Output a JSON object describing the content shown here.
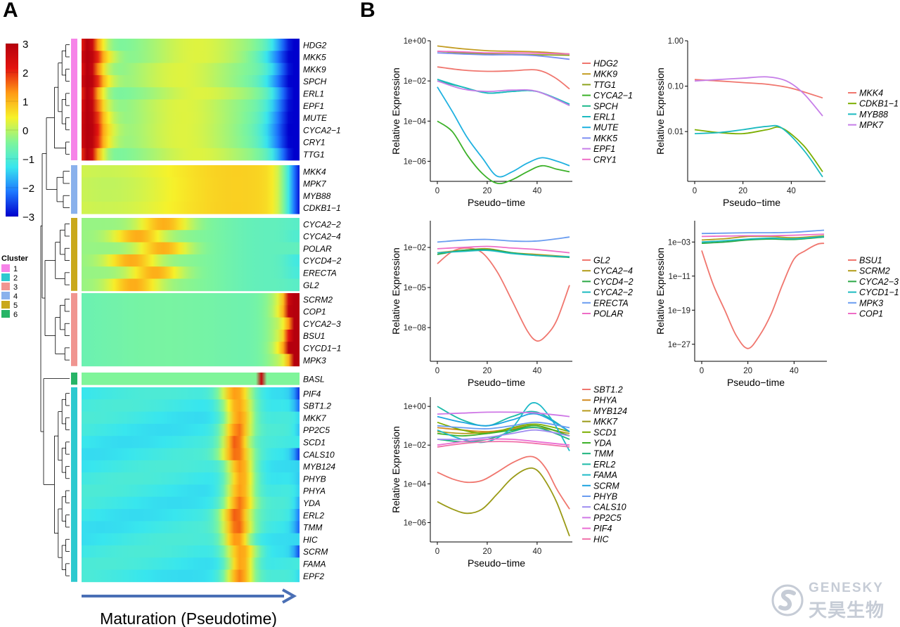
{
  "panels": {
    "a": "A",
    "b": "B"
  },
  "heatmap": {
    "colorbar_ticks": [
      "3",
      "2",
      "1",
      "0",
      "−1",
      "−2",
      "−3"
    ],
    "colorbar_values": [
      3,
      2,
      1,
      0,
      -1,
      -2,
      -3
    ],
    "colorbar_colors": [
      "#0000cd",
      "#1e78ff",
      "#38e6ee",
      "#7ff59a",
      "#f6f22a",
      "#ff9a14",
      "#e3140f",
      "#b5000d"
    ],
    "cluster_legend_title": "Cluster",
    "clusters": [
      {
        "label": "1",
        "color": "#f684e8"
      },
      {
        "label": "2",
        "color": "#2ec9cf"
      },
      {
        "label": "3",
        "color": "#f09590"
      },
      {
        "label": "4",
        "color": "#8ab1ec"
      },
      {
        "label": "5",
        "color": "#c9a81c"
      },
      {
        "label": "6",
        "color": "#27b466"
      }
    ],
    "arrow_color": "#4a6fb5",
    "xlabel": "Maturation (Pseudotime)",
    "blocks": [
      {
        "cluster": 1,
        "genes": [
          "HDG2",
          "MKK5",
          "MKK9",
          "SPCH",
          "ERL1",
          "EPF1",
          "MUTE",
          "CYCA2−1",
          "CRY1",
          "TTG1"
        ]
      },
      {
        "cluster": 4,
        "genes": [
          "MKK4",
          "MPK7",
          "MYB88",
          "CDKB1−1"
        ]
      },
      {
        "cluster": 5,
        "genes": [
          "CYCA2−2",
          "CYCA2−4",
          "POLAR",
          "CYCD4−2",
          "ERECTA",
          "GL2"
        ]
      },
      {
        "cluster": 3,
        "genes": [
          "SCRM2",
          "COP1",
          "CYCA2−3",
          "BSU1",
          "CYCD1−1",
          "MPK3"
        ]
      },
      {
        "cluster": 6,
        "genes": [
          "BASL"
        ]
      },
      {
        "cluster": 2,
        "genes": [
          "PIF4",
          "SBT1.2",
          "MKK7",
          "PP2C5",
          "SCD1",
          "CALS10",
          "MYB124",
          "PHYB",
          "PHYA",
          "YDA",
          "ERL2",
          "TMM",
          "HIC",
          "SCRM",
          "FAMA",
          "EPF2"
        ]
      }
    ]
  },
  "chart_data": [
    {
      "type": "line",
      "ylabel": "Relative Expression",
      "xlabel": "Pseudo−time",
      "y_scale": "log10",
      "xlim": [
        0,
        53
      ],
      "ylim": [
        1e-07,
        1.0
      ],
      "x_ticks": [
        0,
        20,
        40
      ],
      "y_ticks": [
        "1e−06",
        "1e−04",
        "1e−02",
        "1e+00"
      ],
      "y_tick_values": [
        -6,
        -4,
        -2,
        0
      ],
      "series": [
        {
          "name": "HDG2",
          "color": "#f0766e",
          "x": [
            0,
            10,
            20,
            30,
            40,
            47,
            53
          ],
          "y": [
            0.05,
            0.035,
            0.03,
            0.032,
            0.035,
            0.015,
            0.004
          ]
        },
        {
          "name": "MKK9",
          "color": "#c39c21",
          "x": [
            0,
            10,
            20,
            30,
            40,
            53
          ],
          "y": [
            0.55,
            0.4,
            0.32,
            0.3,
            0.28,
            0.22
          ]
        },
        {
          "name": "TTG1",
          "color": "#8da31f",
          "x": [
            0,
            10,
            20,
            30,
            40,
            53
          ],
          "y": [
            0.3,
            0.25,
            0.22,
            0.21,
            0.2,
            0.19
          ]
        },
        {
          "name": "CYCA2−1",
          "color": "#3cb129",
          "x": [
            0,
            6,
            12,
            18,
            24,
            30,
            36,
            42,
            48,
            53
          ],
          "y": [
            0.0001,
            3e-05,
            2e-06,
            2.5e-07,
            8e-08,
            1.2e-07,
            3e-07,
            6e-07,
            4e-07,
            3e-07
          ]
        },
        {
          "name": "SPCH",
          "color": "#1db98b",
          "x": [
            0,
            10,
            20,
            30,
            40,
            53
          ],
          "y": [
            0.01,
            0.005,
            0.0025,
            0.003,
            0.003,
            0.0006
          ]
        },
        {
          "name": "ERL1",
          "color": "#1cbac0",
          "x": [
            0,
            10,
            20,
            30,
            40,
            53
          ],
          "y": [
            0.012,
            0.005,
            0.0025,
            0.003,
            0.003,
            0.0007
          ]
        },
        {
          "name": "MUTE",
          "color": "#1fb1e0",
          "x": [
            0,
            6,
            12,
            18,
            24,
            30,
            36,
            42,
            48,
            53
          ],
          "y": [
            0.005,
            0.0003,
            1.5e-05,
            1.5e-06,
            1.8e-07,
            3e-07,
            8e-07,
            1.5e-06,
            1e-06,
            6e-07
          ]
        },
        {
          "name": "MKK5",
          "color": "#7d8ff2",
          "x": [
            0,
            10,
            20,
            30,
            40,
            53
          ],
          "y": [
            0.25,
            0.22,
            0.2,
            0.2,
            0.18,
            0.12
          ]
        },
        {
          "name": "EPF1",
          "color": "#c67ee8",
          "x": [
            0,
            10,
            20,
            30,
            40,
            53
          ],
          "y": [
            0.01,
            0.004,
            0.003,
            0.0035,
            0.003,
            0.0006
          ]
        },
        {
          "name": "CRY1",
          "color": "#ee6dc6",
          "x": [
            0,
            10,
            20,
            30,
            40,
            53
          ],
          "y": [
            0.3,
            0.28,
            0.25,
            0.25,
            0.24,
            0.22
          ]
        }
      ]
    },
    {
      "type": "line",
      "ylabel": "Relative Expression",
      "xlabel": "Pseudo−time",
      "y_scale": "log10",
      "xlim": [
        0,
        53
      ],
      "ylim": [
        0.0008,
        1.0
      ],
      "x_ticks": [
        0,
        20,
        40
      ],
      "y_ticks": [
        "0.01",
        "0.10",
        "1.00"
      ],
      "y_tick_values": [
        -2,
        -1,
        0
      ],
      "series": [
        {
          "name": "MKK4",
          "color": "#f0766e",
          "x": [
            0,
            10,
            20,
            30,
            40,
            53
          ],
          "y": [
            0.14,
            0.13,
            0.12,
            0.11,
            0.09,
            0.055
          ]
        },
        {
          "name": "CDKB1−1",
          "color": "#7cae00",
          "x": [
            0,
            10,
            20,
            30,
            36,
            45,
            53
          ],
          "y": [
            0.011,
            0.0095,
            0.009,
            0.011,
            0.012,
            0.005,
            0.0013
          ]
        },
        {
          "name": "MYB88",
          "color": "#1cbac0",
          "x": [
            0,
            10,
            20,
            30,
            36,
            45,
            53
          ],
          "y": [
            0.009,
            0.0095,
            0.011,
            0.013,
            0.012,
            0.004,
            0.001
          ]
        },
        {
          "name": "MPK7",
          "color": "#c67ee8",
          "x": [
            0,
            10,
            20,
            30,
            38,
            45,
            53
          ],
          "y": [
            0.13,
            0.14,
            0.15,
            0.16,
            0.13,
            0.07,
            0.022
          ]
        }
      ]
    },
    {
      "type": "line",
      "ylabel": "Relative Expression",
      "xlabel": "Pseudo−time",
      "y_scale": "log10",
      "xlim": [
        0,
        53
      ],
      "ylim": [
        3e-11,
        1.0
      ],
      "x_ticks": [
        0,
        20,
        40
      ],
      "y_ticks": [
        "1e−08",
        "1e−05",
        "1e−02"
      ],
      "y_tick_values": [
        -8,
        -5,
        -2
      ],
      "series": [
        {
          "name": "GL2",
          "color": "#f0766e",
          "x": [
            0,
            6,
            12,
            18,
            24,
            30,
            36,
            40,
            44,
            48,
            53
          ],
          "y": [
            0.0006,
            0.005,
            0.009,
            0.004,
            0.00015,
            1e-06,
            6e-09,
            1e-09,
            3e-09,
            4e-08,
            1.5e-05
          ]
        },
        {
          "name": "CYCA2−4",
          "color": "#b29d1a",
          "x": [
            0,
            10,
            20,
            30,
            40,
            53
          ],
          "y": [
            0.004,
            0.006,
            0.008,
            0.004,
            0.003,
            0.002
          ]
        },
        {
          "name": "CYCD4−2",
          "color": "#2aa845",
          "x": [
            0,
            10,
            20,
            30,
            40,
            53
          ],
          "y": [
            0.003,
            0.006,
            0.007,
            0.004,
            0.0025,
            0.0018
          ]
        },
        {
          "name": "CYCA2−2",
          "color": "#1cbac0",
          "x": [
            0,
            10,
            20,
            30,
            40,
            53
          ],
          "y": [
            0.004,
            0.005,
            0.006,
            0.0035,
            0.0025,
            0.002
          ]
        },
        {
          "name": "ERECTA",
          "color": "#6a9cf0",
          "x": [
            0,
            10,
            20,
            30,
            40,
            53
          ],
          "y": [
            0.025,
            0.035,
            0.04,
            0.03,
            0.03,
            0.06
          ]
        },
        {
          "name": "POLAR",
          "color": "#ee6dc6",
          "x": [
            0,
            10,
            20,
            30,
            40,
            53
          ],
          "y": [
            0.008,
            0.01,
            0.012,
            0.009,
            0.007,
            0.004
          ]
        }
      ]
    },
    {
      "type": "line",
      "ylabel": "Relative Expression",
      "xlabel": "Pseudo−time",
      "y_scale": "log10",
      "xlim": [
        0,
        53
      ],
      "ylim": [
        1e-31,
        100
      ],
      "x_ticks": [
        0,
        20,
        40
      ],
      "y_ticks": [
        "1e−27",
        "1e−19",
        "1e−11",
        "1e−03"
      ],
      "y_tick_values": [
        -27,
        -19,
        -11,
        -3
      ],
      "series": [
        {
          "name": "BSU1",
          "color": "#f0766e",
          "x": [
            0,
            5,
            10,
            15,
            20,
            25,
            30,
            35,
            40,
            45,
            50,
            53
          ],
          "y": [
            1e-05,
            1e-13,
            1e-19,
            1e-25,
            1e-28,
            1e-25,
            1e-20,
            1e-13,
            1e-07,
            1e-05,
            0.0003,
            0.0005
          ]
        },
        {
          "name": "SCRM2",
          "color": "#b29d1a",
          "x": [
            0,
            10,
            20,
            30,
            40,
            53
          ],
          "y": [
            0.003,
            0.006,
            0.02,
            0.02,
            0.01,
            0.03
          ]
        },
        {
          "name": "CYCA2−3",
          "color": "#2aa845",
          "x": [
            0,
            10,
            20,
            30,
            40,
            53
          ],
          "y": [
            0.0005,
            0.001,
            0.003,
            0.005,
            0.004,
            0.015
          ]
        },
        {
          "name": "CYCD1−1",
          "color": "#1cbac0",
          "x": [
            0,
            10,
            20,
            30,
            40,
            53
          ],
          "y": [
            0.001,
            0.002,
            0.005,
            0.008,
            0.006,
            0.02
          ]
        },
        {
          "name": "MPK3",
          "color": "#6a9cf0",
          "x": [
            0,
            10,
            20,
            30,
            40,
            53
          ],
          "y": [
            0.1,
            0.12,
            0.15,
            0.15,
            0.2,
            0.6
          ]
        },
        {
          "name": "COP1",
          "color": "#ee6dc6",
          "x": [
            0,
            10,
            20,
            30,
            40,
            53
          ],
          "y": [
            0.02,
            0.025,
            0.03,
            0.03,
            0.04,
            0.07
          ]
        }
      ]
    },
    {
      "type": "line",
      "ylabel": "Relative Expression",
      "xlabel": "Pseudo−time",
      "y_scale": "log10",
      "xlim": [
        0,
        53
      ],
      "ylim": [
        1e-07,
        3.0
      ],
      "x_ticks": [
        0,
        20,
        40
      ],
      "y_ticks": [
        "1e−06",
        "1e−04",
        "1e−02",
        "1e+00"
      ],
      "y_tick_values": [
        -6,
        -4,
        -2,
        0
      ],
      "series": [
        {
          "name": "SBT1.2",
          "color": "#f0766e",
          "x": [
            0,
            6,
            12,
            18,
            24,
            30,
            36,
            40,
            44,
            48,
            53
          ],
          "y": [
            0.0004,
            0.00018,
            0.00012,
            0.00015,
            0.0004,
            0.0012,
            0.0025,
            0.002,
            0.0005,
            5e-05,
            5e-06
          ]
        },
        {
          "name": "PHYA",
          "color": "#d28a20",
          "x": [
            0,
            10,
            20,
            30,
            40,
            53
          ],
          "y": [
            0.08,
            0.06,
            0.05,
            0.07,
            0.1,
            0.03
          ]
        },
        {
          "name": "MYB124",
          "color": "#b89b1d",
          "x": [
            0,
            10,
            20,
            30,
            40,
            53
          ],
          "y": [
            0.05,
            0.04,
            0.045,
            0.06,
            0.08,
            0.04
          ]
        },
        {
          "name": "MKK7",
          "color": "#9a9a16",
          "x": [
            0,
            6,
            12,
            18,
            24,
            30,
            36,
            40,
            44,
            48,
            53
          ],
          "y": [
            1.2e-05,
            5e-06,
            3e-06,
            5e-06,
            3e-05,
            0.0002,
            0.0006,
            0.0005,
            0.0001,
            1e-05,
            2e-07
          ]
        },
        {
          "name": "SCD1",
          "color": "#7cae00",
          "x": [
            0,
            10,
            20,
            30,
            40,
            53
          ],
          "y": [
            0.15,
            0.06,
            0.04,
            0.08,
            0.12,
            0.05
          ]
        },
        {
          "name": "YDA",
          "color": "#3cb129",
          "x": [
            0,
            10,
            20,
            30,
            40,
            53
          ],
          "y": [
            0.04,
            0.03,
            0.04,
            0.06,
            0.1,
            0.03
          ]
        },
        {
          "name": "TMM",
          "color": "#1ab27c",
          "x": [
            0,
            10,
            20,
            30,
            40,
            53
          ],
          "y": [
            0.02,
            0.015,
            0.02,
            0.05,
            0.08,
            0.02
          ]
        },
        {
          "name": "ERL2",
          "color": "#1cbaa8",
          "x": [
            0,
            10,
            20,
            30,
            40,
            53
          ],
          "y": [
            1.0,
            0.2,
            0.1,
            0.3,
            0.5,
            0.05
          ]
        },
        {
          "name": "FAMA",
          "color": "#1fbac8",
          "x": [
            0,
            10,
            20,
            30,
            38,
            45,
            53
          ],
          "y": [
            0.06,
            0.02,
            0.015,
            0.08,
            1.5,
            0.3,
            0.005
          ]
        },
        {
          "name": "SCRM",
          "color": "#1ea4e0",
          "x": [
            0,
            10,
            20,
            30,
            40,
            53
          ],
          "y": [
            0.3,
            0.15,
            0.1,
            0.2,
            0.4,
            0.05
          ]
        },
        {
          "name": "PHYB",
          "color": "#6a9cf0",
          "x": [
            0,
            10,
            20,
            30,
            40,
            53
          ],
          "y": [
            0.1,
            0.08,
            0.07,
            0.1,
            0.15,
            0.08
          ]
        },
        {
          "name": "CALS10",
          "color": "#9e8cf0",
          "x": [
            0,
            10,
            20,
            30,
            40,
            53
          ],
          "y": [
            0.02,
            0.02,
            0.025,
            0.04,
            0.06,
            0.03
          ]
        },
        {
          "name": "PP2C5",
          "color": "#cf78e6",
          "x": [
            0,
            10,
            20,
            30,
            40,
            53
          ],
          "y": [
            0.4,
            0.45,
            0.5,
            0.5,
            0.45,
            0.3
          ]
        },
        {
          "name": "PIF4",
          "color": "#ea6cd4",
          "x": [
            0,
            10,
            20,
            30,
            40,
            53
          ],
          "y": [
            0.01,
            0.015,
            0.02,
            0.02,
            0.015,
            0.01
          ]
        },
        {
          "name": "HIC",
          "color": "#f06fa8",
          "x": [
            0,
            10,
            20,
            30,
            40,
            53
          ],
          "y": [
            0.008,
            0.012,
            0.015,
            0.015,
            0.012,
            0.008
          ]
        }
      ]
    }
  ],
  "watermark": {
    "line1": "GENESKY",
    "line2": "天昊生物",
    "color": "#c6ccd6"
  }
}
